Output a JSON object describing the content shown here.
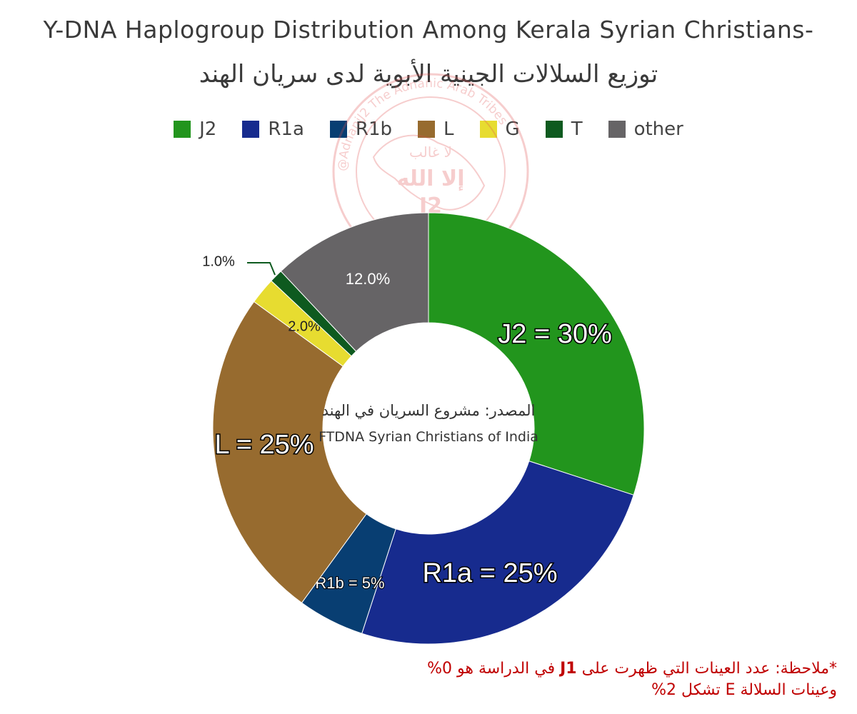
{
  "title_en": "Y-DNA Haplogroup Distribution Among Kerala Syrian Christians-",
  "title_ar": "توزيع السلالات الجينية الأبوية لدى سريان الهند",
  "center_text": {
    "ar": "المصدر: مشروع السريان في الهند",
    "en": "FTDNA Syrian Christians of India"
  },
  "note": {
    "line1_prefix": "*ملاحظة: عدد العينات التي ظهرت على",
    "line1_j1": "J1",
    "line1_suffix": "في الدراسة هو 0%",
    "line2": "وعينات السلالة E تشكل 2%"
  },
  "watermark": {
    "text_circle": "@AdnaniJ2 The Adnanic Arab Tribes",
    "inner_top": "لا غالب",
    "inner_mid": "إلا الله",
    "inner_bottom": "J2"
  },
  "chart_data": {
    "type": "pie",
    "donut": true,
    "title": "Y-DNA Haplogroup Distribution Among Kerala Syrian Christians-",
    "legend_position": "top",
    "series": [
      {
        "name": "J2",
        "value": 30,
        "color": "#22951d",
        "label": "J2 = 30%"
      },
      {
        "name": "R1a",
        "value": 25,
        "color": "#172b8e",
        "label": "R1a = 25%"
      },
      {
        "name": "R1b",
        "value": 5,
        "color": "#083e72",
        "label": "R1b = 5%"
      },
      {
        "name": "L",
        "value": 25,
        "color": "#976b2f",
        "label": "L = 25%"
      },
      {
        "name": "G",
        "value": 2,
        "color": "#e7dc30",
        "label": "2.0%"
      },
      {
        "name": "T",
        "value": 1,
        "color": "#0e5a1f",
        "label": "1.0%"
      },
      {
        "name": "other",
        "value": 12,
        "color": "#666466",
        "label": "12.0%"
      }
    ]
  }
}
